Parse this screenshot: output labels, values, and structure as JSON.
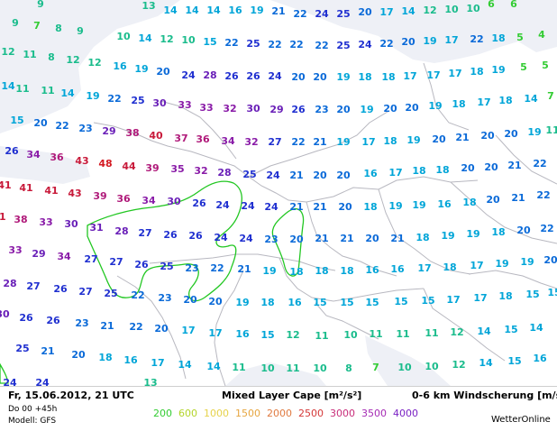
{
  "footer": {
    "date": "Fr, 15.06.2012, 21 UTC",
    "run": "Do 00 +45h",
    "model": "Modell: GFS",
    "cape_title": "Mixed Layer Cape [m²/s²]",
    "wind_title": "0-6 km Windscherung [m/s]",
    "brand": "WetterOnline"
  },
  "legend": [
    {
      "label": "200",
      "color": "#33cc33"
    },
    {
      "label": "600",
      "color": "#b3d42a"
    },
    {
      "label": "1000",
      "color": "#e6d24a"
    },
    {
      "label": "1500",
      "color": "#e6a640"
    },
    {
      "label": "2000",
      "color": "#e07a40"
    },
    {
      "label": "2500",
      "color": "#d43838"
    },
    {
      "label": "3000",
      "color": "#c82d7a"
    },
    {
      "label": "3500",
      "color": "#a52bb4"
    },
    {
      "label": "4000",
      "color": "#7a22c4"
    }
  ],
  "map": {
    "sea_color": "#eef0f6",
    "land_color": "#ffffff",
    "border_color": "#b8b8c0",
    "cape_contour_color": "#22c722",
    "shear_colors": {
      "5-7": "#33cc33",
      "8-13": "#1abc8c",
      "14-19": "#00a5d8",
      "20-23": "#0a6ad8",
      "24-27": "#2030d0",
      "28-31": "#6a20b8",
      "32-35": "#8a1ca8",
      "36-39": "#b01a7a",
      "40-44": "#c81a3a",
      "45-48": "#d41a22"
    },
    "shear_values": [
      [
        45,
        5,
        9
      ],
      [
        165,
        7,
        13
      ],
      [
        189,
        12,
        14
      ],
      [
        213,
        12,
        14
      ],
      [
        237,
        12,
        14
      ],
      [
        261,
        12,
        16
      ],
      [
        285,
        12,
        19
      ],
      [
        309,
        13,
        21
      ],
      [
        333,
        16,
        22
      ],
      [
        357,
        16,
        24
      ],
      [
        381,
        16,
        25
      ],
      [
        405,
        14,
        20
      ],
      [
        429,
        14,
        17
      ],
      [
        453,
        13,
        14
      ],
      [
        477,
        12,
        12
      ],
      [
        501,
        11,
        10
      ],
      [
        525,
        10,
        10
      ],
      [
        545,
        5,
        6
      ],
      [
        570,
        5,
        6
      ],
      [
        17,
        26,
        9
      ],
      [
        41,
        29,
        7
      ],
      [
        65,
        32,
        8
      ],
      [
        89,
        35,
        9
      ],
      [
        137,
        41,
        10
      ],
      [
        161,
        43,
        14
      ],
      [
        185,
        44,
        12
      ],
      [
        209,
        45,
        10
      ],
      [
        233,
        47,
        15
      ],
      [
        257,
        48,
        22
      ],
      [
        281,
        49,
        25
      ],
      [
        305,
        50,
        22
      ],
      [
        329,
        50,
        22
      ],
      [
        357,
        51,
        22
      ],
      [
        381,
        51,
        25
      ],
      [
        405,
        50,
        24
      ],
      [
        429,
        49,
        22
      ],
      [
        453,
        47,
        20
      ],
      [
        477,
        46,
        19
      ],
      [
        501,
        45,
        17
      ],
      [
        529,
        44,
        22
      ],
      [
        553,
        43,
        18
      ],
      [
        577,
        42,
        5
      ],
      [
        601,
        39,
        4
      ],
      [
        9,
        58,
        12
      ],
      [
        33,
        61,
        11
      ],
      [
        57,
        64,
        8
      ],
      [
        81,
        67,
        12
      ],
      [
        105,
        70,
        12
      ],
      [
        133,
        74,
        16
      ],
      [
        157,
        77,
        19
      ],
      [
        181,
        80,
        20
      ],
      [
        209,
        84,
        24
      ],
      [
        233,
        84,
        28
      ],
      [
        257,
        85,
        26
      ],
      [
        281,
        85,
        26
      ],
      [
        305,
        85,
        24
      ],
      [
        331,
        86,
        20
      ],
      [
        355,
        86,
        20
      ],
      [
        381,
        86,
        19
      ],
      [
        405,
        86,
        18
      ],
      [
        431,
        86,
        18
      ],
      [
        455,
        85,
        17
      ],
      [
        481,
        84,
        17
      ],
      [
        505,
        82,
        17
      ],
      [
        529,
        80,
        18
      ],
      [
        553,
        78,
        19
      ],
      [
        581,
        75,
        5
      ],
      [
        605,
        73,
        5
      ],
      [
        9,
        96,
        14
      ],
      [
        25,
        99,
        11
      ],
      [
        53,
        101,
        11
      ],
      [
        75,
        104,
        14
      ],
      [
        103,
        107,
        19
      ],
      [
        127,
        110,
        22
      ],
      [
        153,
        112,
        25
      ],
      [
        177,
        115,
        30
      ],
      [
        205,
        117,
        33
      ],
      [
        229,
        120,
        33
      ],
      [
        255,
        121,
        32
      ],
      [
        281,
        121,
        30
      ],
      [
        307,
        122,
        29
      ],
      [
        331,
        122,
        26
      ],
      [
        357,
        122,
        23
      ],
      [
        381,
        122,
        20
      ],
      [
        407,
        122,
        19
      ],
      [
        433,
        121,
        20
      ],
      [
        457,
        120,
        20
      ],
      [
        483,
        118,
        19
      ],
      [
        509,
        116,
        18
      ],
      [
        537,
        114,
        17
      ],
      [
        561,
        112,
        18
      ],
      [
        589,
        110,
        14
      ],
      [
        611,
        107,
        7
      ],
      [
        19,
        134,
        15
      ],
      [
        45,
        137,
        20
      ],
      [
        69,
        140,
        22
      ],
      [
        95,
        143,
        23
      ],
      [
        121,
        146,
        29
      ],
      [
        147,
        148,
        38
      ],
      [
        173,
        151,
        40
      ],
      [
        201,
        154,
        37
      ],
      [
        225,
        155,
        36
      ],
      [
        253,
        157,
        34
      ],
      [
        279,
        158,
        32
      ],
      [
        305,
        158,
        27
      ],
      [
        331,
        158,
        22
      ],
      [
        355,
        158,
        21
      ],
      [
        381,
        158,
        19
      ],
      [
        409,
        158,
        17
      ],
      [
        433,
        157,
        18
      ],
      [
        459,
        156,
        19
      ],
      [
        487,
        155,
        20
      ],
      [
        513,
        153,
        21
      ],
      [
        541,
        151,
        20
      ],
      [
        567,
        149,
        20
      ],
      [
        593,
        147,
        19
      ],
      [
        613,
        145,
        11
      ],
      [
        13,
        168,
        26
      ],
      [
        37,
        172,
        34
      ],
      [
        63,
        175,
        36
      ],
      [
        91,
        179,
        43
      ],
      [
        117,
        182,
        48
      ],
      [
        143,
        185,
        44
      ],
      [
        169,
        187,
        39
      ],
      [
        197,
        188,
        35
      ],
      [
        223,
        190,
        32
      ],
      [
        249,
        192,
        28
      ],
      [
        277,
        194,
        25
      ],
      [
        303,
        195,
        24
      ],
      [
        329,
        195,
        21
      ],
      [
        355,
        195,
        20
      ],
      [
        381,
        195,
        20
      ],
      [
        411,
        193,
        16
      ],
      [
        439,
        192,
        17
      ],
      [
        465,
        190,
        18
      ],
      [
        491,
        189,
        18
      ],
      [
        519,
        187,
        20
      ],
      [
        545,
        186,
        20
      ],
      [
        571,
        184,
        21
      ],
      [
        599,
        182,
        22
      ],
      [
        5,
        206,
        41
      ],
      [
        29,
        209,
        41
      ],
      [
        57,
        212,
        41
      ],
      [
        83,
        215,
        43
      ],
      [
        111,
        218,
        39
      ],
      [
        137,
        221,
        36
      ],
      [
        165,
        223,
        34
      ],
      [
        193,
        224,
        30
      ],
      [
        221,
        226,
        26
      ],
      [
        247,
        228,
        24
      ],
      [
        275,
        229,
        24
      ],
      [
        301,
        230,
        24
      ],
      [
        329,
        230,
        21
      ],
      [
        355,
        230,
        21
      ],
      [
        383,
        230,
        20
      ],
      [
        411,
        230,
        18
      ],
      [
        439,
        229,
        19
      ],
      [
        465,
        228,
        19
      ],
      [
        493,
        227,
        16
      ],
      [
        521,
        225,
        18
      ],
      [
        547,
        222,
        20
      ],
      [
        575,
        220,
        21
      ],
      [
        603,
        217,
        22
      ],
      [
        -1,
        241,
        41
      ],
      [
        23,
        244,
        38
      ],
      [
        51,
        247,
        33
      ],
      [
        79,
        249,
        30
      ],
      [
        107,
        253,
        31
      ],
      [
        135,
        257,
        28
      ],
      [
        161,
        259,
        27
      ],
      [
        189,
        261,
        26
      ],
      [
        217,
        262,
        26
      ],
      [
        245,
        264,
        24
      ],
      [
        273,
        265,
        24
      ],
      [
        301,
        266,
        23
      ],
      [
        329,
        266,
        20
      ],
      [
        357,
        265,
        21
      ],
      [
        385,
        265,
        21
      ],
      [
        413,
        265,
        20
      ],
      [
        441,
        265,
        21
      ],
      [
        469,
        264,
        18
      ],
      [
        497,
        262,
        19
      ],
      [
        525,
        260,
        19
      ],
      [
        553,
        258,
        18
      ],
      [
        581,
        256,
        20
      ],
      [
        607,
        254,
        22
      ],
      [
        17,
        278,
        33
      ],
      [
        43,
        282,
        29
      ],
      [
        71,
        285,
        34
      ],
      [
        101,
        288,
        27
      ],
      [
        129,
        291,
        27
      ],
      [
        157,
        294,
        26
      ],
      [
        185,
        296,
        25
      ],
      [
        213,
        298,
        23
      ],
      [
        241,
        298,
        22
      ],
      [
        271,
        299,
        21
      ],
      [
        299,
        301,
        19
      ],
      [
        329,
        302,
        18
      ],
      [
        357,
        301,
        18
      ],
      [
        385,
        301,
        18
      ],
      [
        413,
        300,
        16
      ],
      [
        441,
        299,
        16
      ],
      [
        471,
        298,
        17
      ],
      [
        499,
        297,
        18
      ],
      [
        529,
        295,
        17
      ],
      [
        557,
        293,
        19
      ],
      [
        585,
        291,
        19
      ],
      [
        611,
        289,
        20
      ],
      [
        11,
        315,
        28
      ],
      [
        37,
        318,
        27
      ],
      [
        67,
        321,
        26
      ],
      [
        95,
        324,
        27
      ],
      [
        123,
        326,
        25
      ],
      [
        153,
        328,
        22
      ],
      [
        183,
        331,
        23
      ],
      [
        211,
        333,
        20
      ],
      [
        239,
        335,
        20
      ],
      [
        269,
        336,
        19
      ],
      [
        297,
        336,
        18
      ],
      [
        327,
        336,
        16
      ],
      [
        355,
        336,
        15
      ],
      [
        385,
        336,
        15
      ],
      [
        413,
        336,
        15
      ],
      [
        445,
        335,
        15
      ],
      [
        475,
        334,
        15
      ],
      [
        503,
        333,
        17
      ],
      [
        533,
        331,
        17
      ],
      [
        561,
        329,
        18
      ],
      [
        591,
        327,
        15
      ],
      [
        615,
        325,
        15
      ],
      [
        3,
        349,
        30
      ],
      [
        29,
        353,
        26
      ],
      [
        59,
        356,
        26
      ],
      [
        91,
        359,
        23
      ],
      [
        119,
        362,
        21
      ],
      [
        151,
        363,
        22
      ],
      [
        179,
        365,
        20
      ],
      [
        209,
        367,
        17
      ],
      [
        239,
        370,
        17
      ],
      [
        269,
        371,
        16
      ],
      [
        297,
        372,
        15
      ],
      [
        325,
        372,
        12
      ],
      [
        357,
        373,
        11
      ],
      [
        389,
        372,
        10
      ],
      [
        417,
        371,
        11
      ],
      [
        447,
        371,
        11
      ],
      [
        479,
        370,
        11
      ],
      [
        507,
        369,
        12
      ],
      [
        537,
        368,
        14
      ],
      [
        567,
        366,
        15
      ],
      [
        595,
        364,
        14
      ],
      [
        25,
        387,
        25
      ],
      [
        53,
        390,
        21
      ],
      [
        87,
        394,
        20
      ],
      [
        117,
        397,
        18
      ],
      [
        145,
        400,
        16
      ],
      [
        175,
        403,
        17
      ],
      [
        205,
        405,
        14
      ],
      [
        237,
        407,
        14
      ],
      [
        265,
        408,
        11
      ],
      [
        297,
        409,
        10
      ],
      [
        325,
        409,
        11
      ],
      [
        355,
        409,
        10
      ],
      [
        387,
        409,
        8
      ],
      [
        417,
        408,
        7
      ],
      [
        449,
        408,
        10
      ],
      [
        479,
        407,
        10
      ],
      [
        509,
        405,
        12
      ],
      [
        539,
        403,
        14
      ],
      [
        571,
        401,
        15
      ],
      [
        599,
        398,
        16
      ],
      [
        11,
        425,
        24
      ],
      [
        47,
        425,
        24
      ],
      [
        167,
        425,
        13
      ]
    ],
    "cape_contours": [
      "M97,250 C115,240 145,232 168,230 C190,227 205,224 221,212 C232,204 246,198 259,203 C271,210 270,225 264,239 C258,253 248,258 243,263 C236,270 242,276 253,273 C266,268 262,283 257,296 C253,311 238,322 227,330 C212,340 205,327 213,318 C225,304 222,291 205,293 C188,296 172,293 163,300 C153,310 160,328 142,330 C128,332 122,320 117,307 C111,293 104,278 97,262 Z",
      "M318,236 C330,226 339,234 336,250 C334,266 333,284 331,300 C328,310 319,307 316,296 C313,282 307,272 303,262 C300,252 308,244 318,236 Z",
      "M0,404 C4,411 8,418 9,425 L0,425 Z"
    ]
  }
}
